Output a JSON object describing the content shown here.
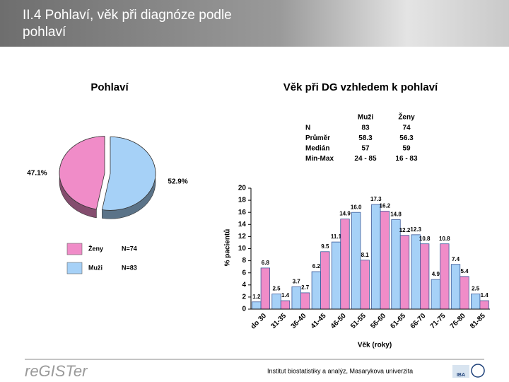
{
  "header": {
    "title": "II.4 Pohlaví, věk při diagnóze podle pohlaví"
  },
  "chart_data": [
    {
      "type": "pie",
      "title": "Pohlaví",
      "categories": [
        "Ženy",
        "Muži"
      ],
      "values": [
        47.1,
        52.9
      ],
      "value_labels": [
        "47.1%",
        "52.9%"
      ],
      "colors": [
        "#f08cc8",
        "#a6d1f7"
      ],
      "legend_notes": [
        "N=74",
        "N=83"
      ]
    },
    {
      "type": "bar",
      "title": "Věk při DG vzhledem k pohlaví",
      "categories": [
        "do 30",
        "31-35",
        "36-40",
        "41-45",
        "46-50",
        "51-55",
        "56-60",
        "61-65",
        "66-70",
        "71-75",
        "76-80",
        "81-85"
      ],
      "series": [
        {
          "name": "Muži",
          "color": "#a6d1f7",
          "values": [
            1.2,
            2.5,
            3.7,
            6.2,
            11.1,
            16.0,
            17.3,
            14.8,
            12.3,
            4.9,
            7.4,
            2.5
          ]
        },
        {
          "name": "Ženy",
          "color": "#f08cc8",
          "values": [
            6.8,
            1.4,
            2.7,
            9.5,
            14.9,
            8.1,
            16.2,
            12.2,
            10.8,
            10.8,
            5.4,
            1.4
          ]
        }
      ],
      "value_labels": [
        [
          "1.2",
          "2.5",
          "3.7",
          "6.2",
          "11.1",
          "16.0",
          "17.3",
          "14.8",
          "12.3",
          "4.9",
          "7.4",
          "2.5"
        ],
        [
          "6.8",
          "1.4",
          "2.7",
          "9.5",
          "14.9",
          "8.1",
          "16.2",
          "12.2",
          "10.8",
          "10.8",
          "5.4",
          "1.4"
        ]
      ],
      "ylim": [
        0,
        20
      ],
      "yticks": [
        0,
        2,
        4,
        6,
        8,
        10,
        12,
        14,
        16,
        18,
        20
      ],
      "ylabel": "% pacientů",
      "xlabel": "Věk (roky)"
    }
  ],
  "stats_table": {
    "columns": [
      "Muži",
      "Ženy"
    ],
    "rows": [
      {
        "label": "N",
        "values": [
          83,
          74
        ]
      },
      {
        "label": "Průměr",
        "values": [
          58.3,
          56.3
        ]
      },
      {
        "label": "Medián",
        "values": [
          57,
          59
        ]
      },
      {
        "label": "Min-Max",
        "values": [
          "24 - 85",
          "16 - 83"
        ]
      }
    ]
  },
  "footer": {
    "logo": "reGISTer",
    "institute": "Institut biostatistiky a analýz, Masarykova univerzita",
    "badge": "IBA"
  }
}
